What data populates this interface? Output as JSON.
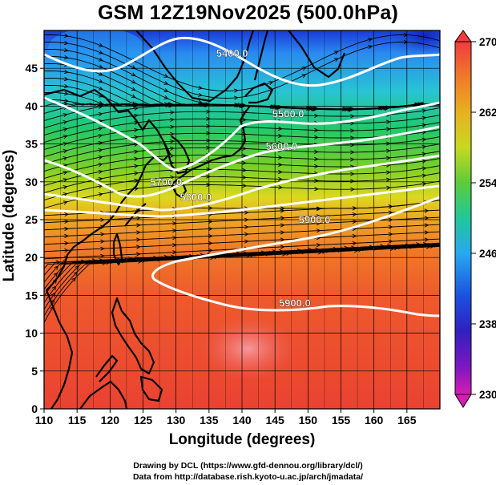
{
  "title": "GSM 12Z19Nov2025 (500.0hPa)",
  "map": {
    "region": "Western Pacific / East Asia",
    "xlabel": "Longitude (degrees)",
    "ylabel": "Latitude  (degrees)",
    "x_ticks": [
      "110",
      "115",
      "120",
      "125",
      "130",
      "135",
      "140",
      "145",
      "150",
      "155",
      "160",
      "165"
    ],
    "y_ticks": [
      "0",
      "5",
      "10",
      "15",
      "20",
      "25",
      "30",
      "35",
      "40",
      "45"
    ],
    "lon_range": [
      110,
      170
    ],
    "lat_range": [
      0,
      50
    ],
    "background_field": "temperature (K)",
    "contour_field": "geopotential height (m)",
    "contour_labels": [
      {
        "text": "5400.0",
        "lon": 138.5,
        "lat": 46.5
      },
      {
        "text": "5500.0",
        "lon": 147,
        "lat": 38.5
      },
      {
        "text": "5600.0",
        "lon": 146,
        "lat": 34.2
      },
      {
        "text": "5700.0",
        "lon": 128.5,
        "lat": 29.5
      },
      {
        "text": "5800.0",
        "lon": 133,
        "lat": 27.5
      },
      {
        "text": "5900.0",
        "lon": 151,
        "lat": 24.5
      },
      {
        "text": "5900.0",
        "lon": 148,
        "lat": 13.5
      }
    ]
  },
  "colorbar": {
    "labels": [
      "270",
      "262",
      "254",
      "246",
      "238",
      "230"
    ],
    "min": 230,
    "max": 270,
    "colors": [
      "#f03c3c",
      "#f07a28",
      "#e8b020",
      "#c8d820",
      "#5ccc3a",
      "#20c89a",
      "#28a8f0",
      "#1a52e0",
      "#3020c0",
      "#7a18c0",
      "#d81cb4"
    ]
  },
  "credits": {
    "line1": "Drawing by DCL (https://www.gfd-dennou.org/library/dcl/)",
    "line2": "Data from http://database.rish.kyoto-u.ac.jp/arch/jmadata/"
  }
}
